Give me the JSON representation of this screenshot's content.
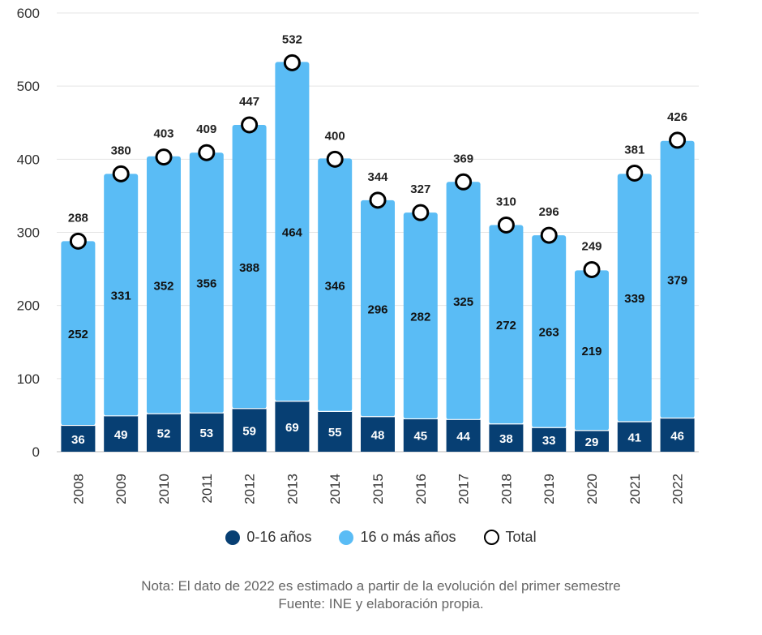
{
  "chart_data": {
    "type": "bar",
    "stacked": true,
    "categories": [
      "2008",
      "2009",
      "2010",
      "2011",
      "2012",
      "2013",
      "2014",
      "2015",
      "2016",
      "2017",
      "2018",
      "2019",
      "2020",
      "2021",
      "2022"
    ],
    "series": [
      {
        "name": "0-16 años",
        "color": "#073f73",
        "values": [
          36,
          49,
          52,
          53,
          59,
          69,
          55,
          48,
          45,
          44,
          38,
          33,
          29,
          41,
          46
        ]
      },
      {
        "name": "16 o más años",
        "color": "#5abcf5",
        "values": [
          252,
          331,
          352,
          356,
          388,
          464,
          346,
          296,
          282,
          325,
          272,
          263,
          219,
          339,
          379
        ]
      },
      {
        "name": "Total",
        "type": "scatter",
        "color": "#000000",
        "values": [
          288,
          380,
          403,
          409,
          447,
          532,
          400,
          344,
          327,
          369,
          310,
          296,
          249,
          381,
          426
        ]
      }
    ],
    "yticks": [
      "0",
      "100",
      "200",
      "300",
      "400",
      "500",
      "600"
    ],
    "ylim": [
      0,
      600
    ],
    "grid": true,
    "legend_position": "bottom",
    "title": "",
    "xlabel": "",
    "ylabel": ""
  },
  "legend": {
    "young": "0-16 años",
    "adult": "16 o más años",
    "total": "Total"
  },
  "notes": {
    "line1": "Nota: El dato de 2022 es estimado a partir de la evolución del primer semestre",
    "line2": "Fuente: INE y elaboración propia."
  }
}
